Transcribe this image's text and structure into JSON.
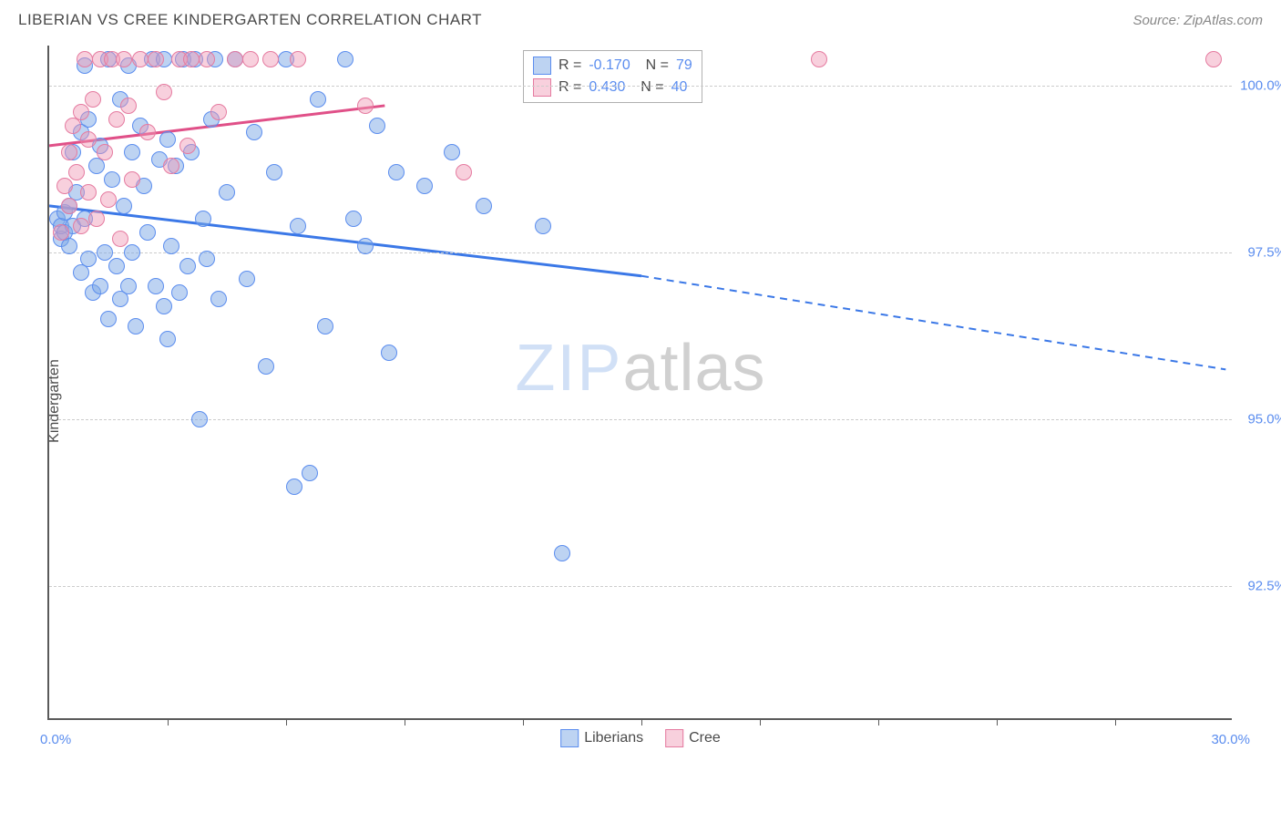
{
  "header": {
    "title": "LIBERIAN VS CREE KINDERGARTEN CORRELATION CHART",
    "source": "Source: ZipAtlas.com"
  },
  "chart": {
    "type": "scatter",
    "y_label": "Kindergarten",
    "xlim": [
      0.0,
      30.0
    ],
    "ylim": [
      90.5,
      100.6
    ],
    "x_min_label": "0.0%",
    "x_max_label": "30.0%",
    "x_tick_positions": [
      3.0,
      6.0,
      9.0,
      12.0,
      15.0,
      18.0,
      21.0,
      24.0,
      27.0
    ],
    "y_grid": [
      {
        "value": 92.5,
        "label": "92.5%"
      },
      {
        "value": 95.0,
        "label": "95.0%"
      },
      {
        "value": 97.5,
        "label": "97.5%"
      },
      {
        "value": 100.0,
        "label": "100.0%"
      }
    ],
    "background_color": "#ffffff",
    "grid_color": "#cccccc",
    "axis_color": "#5a5a5a",
    "tick_label_color": "#5b8def",
    "point_radius": 9,
    "series": [
      {
        "name": "Liberians",
        "color_fill": "rgba(123,167,230,0.5)",
        "color_stroke": "#5b8def",
        "R": "-0.170",
        "N": "79",
        "trend": {
          "x1": 0.0,
          "y1": 98.2,
          "x2_solid": 15.0,
          "y2_solid": 97.15,
          "x2_dash": 29.8,
          "y2_dash": 95.75,
          "stroke": "#3b78e7",
          "width": 3
        },
        "points": [
          [
            0.2,
            98.0
          ],
          [
            0.3,
            97.7
          ],
          [
            0.3,
            97.9
          ],
          [
            0.4,
            98.1
          ],
          [
            0.4,
            97.8
          ],
          [
            0.5,
            97.6
          ],
          [
            0.5,
            98.2
          ],
          [
            0.6,
            97.9
          ],
          [
            0.6,
            99.0
          ],
          [
            0.7,
            98.4
          ],
          [
            0.8,
            99.3
          ],
          [
            0.8,
            97.2
          ],
          [
            0.9,
            100.3
          ],
          [
            0.9,
            98.0
          ],
          [
            1.0,
            99.5
          ],
          [
            1.0,
            97.4
          ],
          [
            1.1,
            96.9
          ],
          [
            1.2,
            98.8
          ],
          [
            1.3,
            97.0
          ],
          [
            1.3,
            99.1
          ],
          [
            1.4,
            97.5
          ],
          [
            1.5,
            100.4
          ],
          [
            1.5,
            96.5
          ],
          [
            1.6,
            98.6
          ],
          [
            1.7,
            97.3
          ],
          [
            1.8,
            99.8
          ],
          [
            1.8,
            96.8
          ],
          [
            1.9,
            98.2
          ],
          [
            2.0,
            97.0
          ],
          [
            2.0,
            100.3
          ],
          [
            2.1,
            99.0
          ],
          [
            2.1,
            97.5
          ],
          [
            2.2,
            96.4
          ],
          [
            2.3,
            99.4
          ],
          [
            2.4,
            98.5
          ],
          [
            2.5,
            97.8
          ],
          [
            2.6,
            100.4
          ],
          [
            2.7,
            97.0
          ],
          [
            2.8,
            98.9
          ],
          [
            2.9,
            96.7
          ],
          [
            2.9,
            100.4
          ],
          [
            3.0,
            96.2
          ],
          [
            3.0,
            99.2
          ],
          [
            3.1,
            97.6
          ],
          [
            3.2,
            98.8
          ],
          [
            3.3,
            96.9
          ],
          [
            3.4,
            100.4
          ],
          [
            3.5,
            97.3
          ],
          [
            3.6,
            99.0
          ],
          [
            3.7,
            100.4
          ],
          [
            3.8,
            95.0
          ],
          [
            3.9,
            98.0
          ],
          [
            4.0,
            97.4
          ],
          [
            4.1,
            99.5
          ],
          [
            4.2,
            100.4
          ],
          [
            4.3,
            96.8
          ],
          [
            4.5,
            98.4
          ],
          [
            4.7,
            100.4
          ],
          [
            5.0,
            97.1
          ],
          [
            5.2,
            99.3
          ],
          [
            5.5,
            95.8
          ],
          [
            5.7,
            98.7
          ],
          [
            6.0,
            100.4
          ],
          [
            6.2,
            94.0
          ],
          [
            6.3,
            97.9
          ],
          [
            6.6,
            94.2
          ],
          [
            6.8,
            99.8
          ],
          [
            7.0,
            96.4
          ],
          [
            7.5,
            100.4
          ],
          [
            7.7,
            98.0
          ],
          [
            8.0,
            97.6
          ],
          [
            8.3,
            99.4
          ],
          [
            8.6,
            96.0
          ],
          [
            8.8,
            98.7
          ],
          [
            9.5,
            98.5
          ],
          [
            10.2,
            99.0
          ],
          [
            11.0,
            98.2
          ],
          [
            12.5,
            97.9
          ],
          [
            13.0,
            93.0
          ]
        ]
      },
      {
        "name": "Cree",
        "color_fill": "rgba(240,150,180,0.45)",
        "color_stroke": "#e57ba0",
        "R": "0.430",
        "N": "40",
        "trend": {
          "x1": 0.0,
          "y1": 99.1,
          "x2_solid": 8.5,
          "y2_solid": 99.7,
          "x2_dash": null,
          "y2_dash": null,
          "stroke": "#e05088",
          "width": 3
        },
        "points": [
          [
            0.3,
            97.8
          ],
          [
            0.4,
            98.5
          ],
          [
            0.5,
            99.0
          ],
          [
            0.5,
            98.2
          ],
          [
            0.6,
            99.4
          ],
          [
            0.7,
            98.7
          ],
          [
            0.8,
            99.6
          ],
          [
            0.8,
            97.9
          ],
          [
            0.9,
            100.4
          ],
          [
            1.0,
            98.4
          ],
          [
            1.0,
            99.2
          ],
          [
            1.1,
            99.8
          ],
          [
            1.2,
            98.0
          ],
          [
            1.3,
            100.4
          ],
          [
            1.4,
            99.0
          ],
          [
            1.5,
            98.3
          ],
          [
            1.6,
            100.4
          ],
          [
            1.7,
            99.5
          ],
          [
            1.8,
            97.7
          ],
          [
            1.9,
            100.4
          ],
          [
            2.0,
            99.7
          ],
          [
            2.1,
            98.6
          ],
          [
            2.3,
            100.4
          ],
          [
            2.5,
            99.3
          ],
          [
            2.7,
            100.4
          ],
          [
            2.9,
            99.9
          ],
          [
            3.1,
            98.8
          ],
          [
            3.3,
            100.4
          ],
          [
            3.5,
            99.1
          ],
          [
            3.6,
            100.4
          ],
          [
            4.0,
            100.4
          ],
          [
            4.3,
            99.6
          ],
          [
            4.7,
            100.4
          ],
          [
            5.1,
            100.4
          ],
          [
            5.6,
            100.4
          ],
          [
            6.3,
            100.4
          ],
          [
            8.0,
            99.7
          ],
          [
            10.5,
            98.7
          ],
          [
            19.5,
            100.4
          ],
          [
            29.5,
            100.4
          ]
        ]
      }
    ],
    "legend": {
      "items": [
        {
          "label": "Liberians",
          "sw": "blue"
        },
        {
          "label": "Cree",
          "sw": "pink"
        }
      ]
    },
    "watermark": {
      "part1": "ZIP",
      "part2": "atlas"
    }
  }
}
